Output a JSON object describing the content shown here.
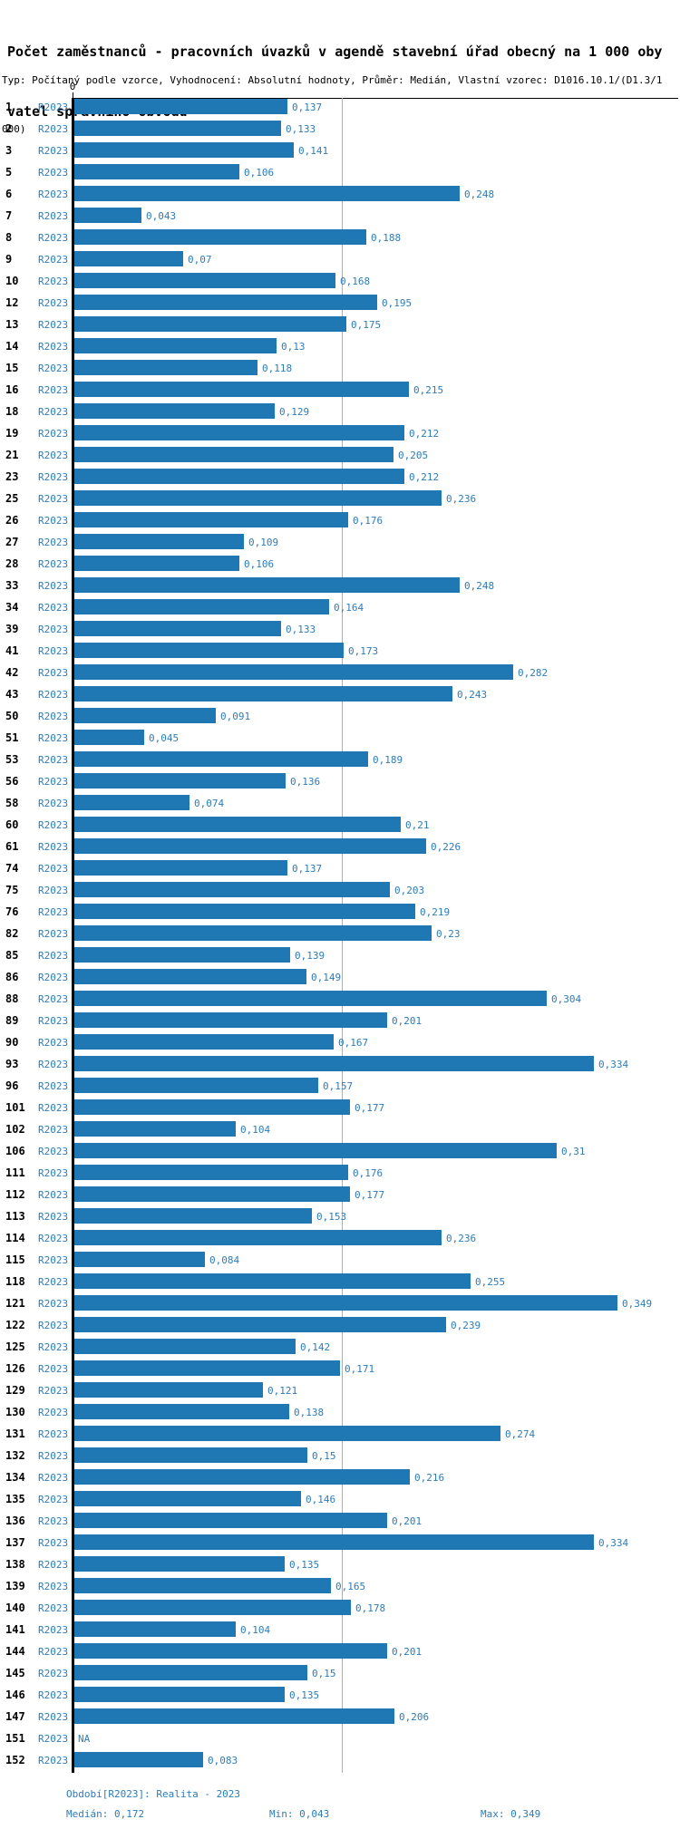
{
  "title": {
    "line1": "Počet zaměstnanců - pracovních úvazků v agendě stavební úřad obecný na 1 000 oby",
    "line2": "vatel správního obvodu"
  },
  "subtitle": {
    "line1": "Typ: Počítaný podle vzorce, Vyhodnocení: Absolutní hodnoty, Průměr: Medián, Vlastní vzorec: D1016.10.1/(D1.3/1",
    "line2": "000)"
  },
  "chart_data": {
    "type": "bar",
    "orientation": "horizontal",
    "series_label": "R2023",
    "axis_zero_label": "0",
    "xlim": [
      0,
      0.39
    ],
    "median_line_value": 0.172,
    "value_format": "czech-decimal-comma",
    "na_text": "NA",
    "rows": [
      {
        "id": "1",
        "value": 0.137,
        "display": "0,137"
      },
      {
        "id": "2",
        "value": 0.133,
        "display": "0,133"
      },
      {
        "id": "3",
        "value": 0.141,
        "display": "0,141"
      },
      {
        "id": "5",
        "value": 0.106,
        "display": "0,106"
      },
      {
        "id": "6",
        "value": 0.248,
        "display": "0,248"
      },
      {
        "id": "7",
        "value": 0.043,
        "display": "0,043"
      },
      {
        "id": "8",
        "value": 0.188,
        "display": "0,188"
      },
      {
        "id": "9",
        "value": 0.07,
        "display": "0,07"
      },
      {
        "id": "10",
        "value": 0.168,
        "display": "0,168"
      },
      {
        "id": "12",
        "value": 0.195,
        "display": "0,195"
      },
      {
        "id": "13",
        "value": 0.175,
        "display": "0,175"
      },
      {
        "id": "14",
        "value": 0.13,
        "display": "0,13"
      },
      {
        "id": "15",
        "value": 0.118,
        "display": "0,118"
      },
      {
        "id": "16",
        "value": 0.215,
        "display": "0,215"
      },
      {
        "id": "18",
        "value": 0.129,
        "display": "0,129"
      },
      {
        "id": "19",
        "value": 0.212,
        "display": "0,212"
      },
      {
        "id": "21",
        "value": 0.205,
        "display": "0,205"
      },
      {
        "id": "23",
        "value": 0.212,
        "display": "0,212"
      },
      {
        "id": "25",
        "value": 0.236,
        "display": "0,236"
      },
      {
        "id": "26",
        "value": 0.176,
        "display": "0,176"
      },
      {
        "id": "27",
        "value": 0.109,
        "display": "0,109"
      },
      {
        "id": "28",
        "value": 0.106,
        "display": "0,106"
      },
      {
        "id": "33",
        "value": 0.248,
        "display": "0,248"
      },
      {
        "id": "34",
        "value": 0.164,
        "display": "0,164"
      },
      {
        "id": "39",
        "value": 0.133,
        "display": "0,133"
      },
      {
        "id": "41",
        "value": 0.173,
        "display": "0,173"
      },
      {
        "id": "42",
        "value": 0.282,
        "display": "0,282"
      },
      {
        "id": "43",
        "value": 0.243,
        "display": "0,243"
      },
      {
        "id": "50",
        "value": 0.091,
        "display": "0,091"
      },
      {
        "id": "51",
        "value": 0.045,
        "display": "0,045"
      },
      {
        "id": "53",
        "value": 0.189,
        "display": "0,189"
      },
      {
        "id": "56",
        "value": 0.136,
        "display": "0,136"
      },
      {
        "id": "58",
        "value": 0.074,
        "display": "0,074"
      },
      {
        "id": "60",
        "value": 0.21,
        "display": "0,21"
      },
      {
        "id": "61",
        "value": 0.226,
        "display": "0,226"
      },
      {
        "id": "74",
        "value": 0.137,
        "display": "0,137"
      },
      {
        "id": "75",
        "value": 0.203,
        "display": "0,203"
      },
      {
        "id": "76",
        "value": 0.219,
        "display": "0,219"
      },
      {
        "id": "82",
        "value": 0.23,
        "display": "0,23"
      },
      {
        "id": "85",
        "value": 0.139,
        "display": "0,139"
      },
      {
        "id": "86",
        "value": 0.149,
        "display": "0,149"
      },
      {
        "id": "88",
        "value": 0.304,
        "display": "0,304"
      },
      {
        "id": "89",
        "value": 0.201,
        "display": "0,201"
      },
      {
        "id": "90",
        "value": 0.167,
        "display": "0,167"
      },
      {
        "id": "93",
        "value": 0.334,
        "display": "0,334"
      },
      {
        "id": "96",
        "value": 0.157,
        "display": "0,157"
      },
      {
        "id": "101",
        "value": 0.177,
        "display": "0,177"
      },
      {
        "id": "102",
        "value": 0.104,
        "display": "0,104"
      },
      {
        "id": "106",
        "value": 0.31,
        "display": "0,31"
      },
      {
        "id": "111",
        "value": 0.176,
        "display": "0,176"
      },
      {
        "id": "112",
        "value": 0.177,
        "display": "0,177"
      },
      {
        "id": "113",
        "value": 0.153,
        "display": "0,153"
      },
      {
        "id": "114",
        "value": 0.236,
        "display": "0,236"
      },
      {
        "id": "115",
        "value": 0.084,
        "display": "0,084"
      },
      {
        "id": "118",
        "value": 0.255,
        "display": "0,255"
      },
      {
        "id": "121",
        "value": 0.349,
        "display": "0,349"
      },
      {
        "id": "122",
        "value": 0.239,
        "display": "0,239"
      },
      {
        "id": "125",
        "value": 0.142,
        "display": "0,142"
      },
      {
        "id": "126",
        "value": 0.171,
        "display": "0,171"
      },
      {
        "id": "129",
        "value": 0.121,
        "display": "0,121"
      },
      {
        "id": "130",
        "value": 0.138,
        "display": "0,138"
      },
      {
        "id": "131",
        "value": 0.274,
        "display": "0,274"
      },
      {
        "id": "132",
        "value": 0.15,
        "display": "0,15"
      },
      {
        "id": "134",
        "value": 0.216,
        "display": "0,216"
      },
      {
        "id": "135",
        "value": 0.146,
        "display": "0,146"
      },
      {
        "id": "136",
        "value": 0.201,
        "display": "0,201"
      },
      {
        "id": "137",
        "value": 0.334,
        "display": "0,334"
      },
      {
        "id": "138",
        "value": 0.135,
        "display": "0,135"
      },
      {
        "id": "139",
        "value": 0.165,
        "display": "0,165"
      },
      {
        "id": "140",
        "value": 0.178,
        "display": "0,178"
      },
      {
        "id": "141",
        "value": 0.104,
        "display": "0,104"
      },
      {
        "id": "144",
        "value": 0.201,
        "display": "0,201"
      },
      {
        "id": "145",
        "value": 0.15,
        "display": "0,15"
      },
      {
        "id": "146",
        "value": 0.135,
        "display": "0,135"
      },
      {
        "id": "147",
        "value": 0.206,
        "display": "0,206"
      },
      {
        "id": "151",
        "value": null,
        "display": "NA"
      },
      {
        "id": "152",
        "value": 0.083,
        "display": "0,083"
      }
    ]
  },
  "footer": {
    "period": "Období[R2023]: Realita - 2023",
    "median": "Medián: 0,172",
    "min": "Min: 0,043",
    "max": "Max: 0,349"
  },
  "colors": {
    "bar": "#1f77b4",
    "label_blue": "#2e7cb8",
    "median_line": "#8ab8d8",
    "axis": "#000000",
    "id_text": "#000000",
    "background": "#ffffff"
  }
}
